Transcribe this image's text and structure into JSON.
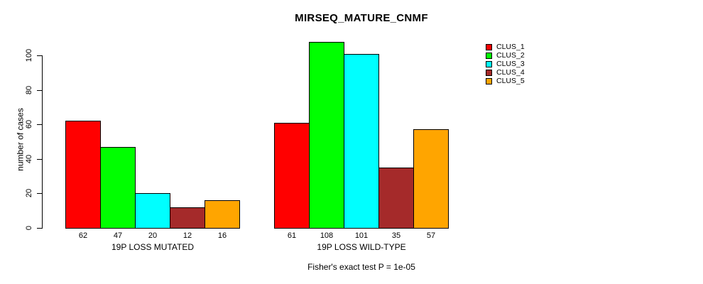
{
  "chart_data": {
    "type": "bar",
    "title": "MIRSEQ_MATURE_CNMF",
    "ylabel": "number of cases",
    "xlabel": "",
    "annotation": "Fisher's exact test P = 1e-05",
    "yticks": [
      0,
      20,
      40,
      60,
      80,
      100
    ],
    "ylim": [
      0,
      110
    ],
    "grid": false,
    "legend_position": "right",
    "bar_border_color": "#000000",
    "background_color": "#ffffff",
    "series_names": [
      "CLUS_1",
      "CLUS_2",
      "CLUS_3",
      "CLUS_4",
      "CLUS_5"
    ],
    "colors": [
      "#FF0000",
      "#00FF00",
      "#00FFFF",
      "#A52A2A",
      "#FFA500"
    ],
    "groups": [
      {
        "label": "19P LOSS MUTATED",
        "values": [
          62,
          47,
          20,
          12,
          16
        ]
      },
      {
        "label": "19P LOSS WILD-TYPE",
        "values": [
          61,
          108,
          101,
          35,
          57
        ]
      }
    ]
  }
}
